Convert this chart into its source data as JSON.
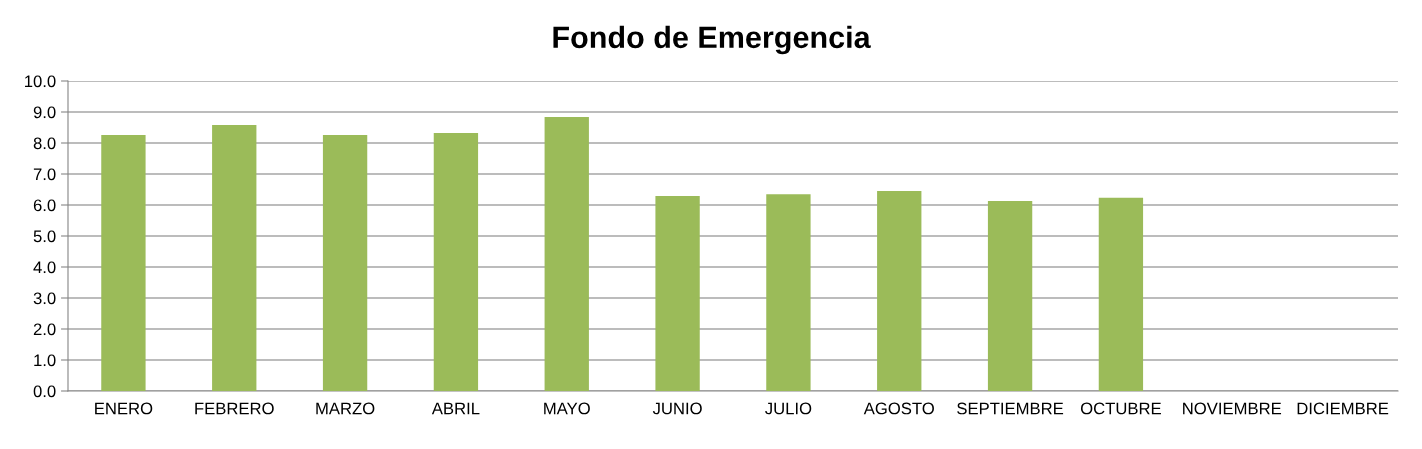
{
  "chart_data": {
    "type": "bar",
    "title": "Fondo de Emergencia",
    "categories": [
      "ENERO",
      "FEBRERO",
      "MARZO",
      "ABRIL",
      "MAYO",
      "JUNIO",
      "JULIO",
      "AGOSTO",
      "SEPTIEMBRE",
      "OCTUBRE",
      "NOVIEMBRE",
      "DICIEMBRE"
    ],
    "values": [
      8.26,
      8.58,
      8.26,
      8.32,
      8.84,
      6.29,
      6.35,
      6.45,
      6.13,
      6.23,
      null,
      null
    ],
    "color": "#9bbb59",
    "ylim": [
      0,
      10
    ],
    "yticks": [
      {
        "value": 0,
        "label": "0.0"
      },
      {
        "value": 1,
        "label": "1.0"
      },
      {
        "value": 2,
        "label": "2.0"
      },
      {
        "value": 3,
        "label": "3.0"
      },
      {
        "value": 4,
        "label": "4.0"
      },
      {
        "value": 5,
        "label": "5.0"
      },
      {
        "value": 6,
        "label": "6.0"
      },
      {
        "value": 7,
        "label": "7.0"
      },
      {
        "value": 8,
        "label": "8.0"
      },
      {
        "value": 9,
        "label": "9.0"
      },
      {
        "value": 10,
        "label": "10.0"
      }
    ],
    "grid": "y",
    "legend": false
  }
}
